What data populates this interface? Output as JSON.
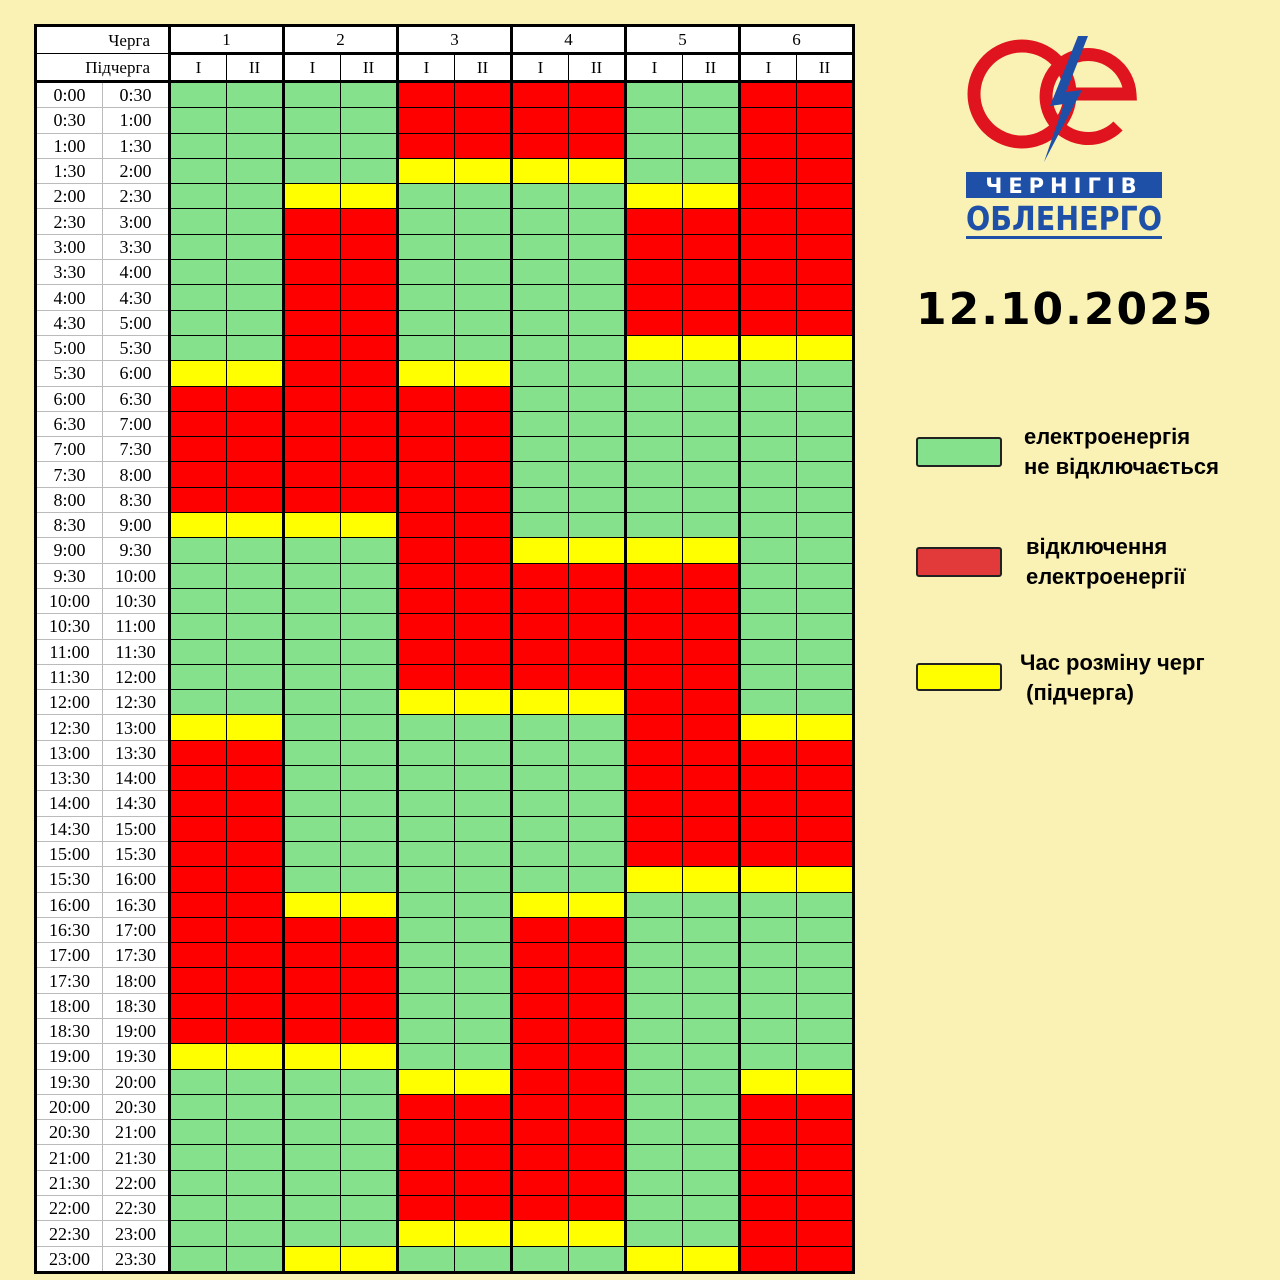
{
  "header": {
    "queue_label": "Черга",
    "subqueue_label": "Підчерга",
    "queues": [
      "1",
      "2",
      "3",
      "4",
      "5",
      "6"
    ],
    "subqueues": [
      "I",
      "II"
    ]
  },
  "date": "12.10.2025",
  "logo": {
    "line1": "ЧЕРНІГІВ",
    "line2": "ОБЛЕНЕРГО"
  },
  "colors": {
    "G": "#86e18c",
    "R": "#ff0000",
    "Y": "#ffff00"
  },
  "legend": [
    {
      "code": "G",
      "line1": "електроенергія",
      "line2": "не відключається"
    },
    {
      "code": "R",
      "line1": "відключення",
      "line2": "електроенергії"
    },
    {
      "code": "Y",
      "line1": "Час розміну черг",
      "line2": " (підчерга)"
    }
  ],
  "rows": [
    {
      "from": "0:00",
      "to": "0:30",
      "status": "GGGGRRRRGGRR"
    },
    {
      "from": "0:30",
      "to": "1:00",
      "status": "GGGGRRRRGGRR"
    },
    {
      "from": "1:00",
      "to": "1:30",
      "status": "GGGGRRRRGGRR"
    },
    {
      "from": "1:30",
      "to": "2:00",
      "status": "GGGGYYYYGGRR"
    },
    {
      "from": "2:00",
      "to": "2:30",
      "status": "GGYYGGGGYYRR"
    },
    {
      "from": "2:30",
      "to": "3:00",
      "status": "GGRRGGGGRRRR"
    },
    {
      "from": "3:00",
      "to": "3:30",
      "status": "GGRRGGGGRRRR"
    },
    {
      "from": "3:30",
      "to": "4:00",
      "status": "GGRRGGGGRRRR"
    },
    {
      "from": "4:00",
      "to": "4:30",
      "status": "GGRRGGGGRRRR"
    },
    {
      "from": "4:30",
      "to": "5:00",
      "status": "GGRRGGGGRRRR"
    },
    {
      "from": "5:00",
      "to": "5:30",
      "status": "GGRRGGGGYYYY"
    },
    {
      "from": "5:30",
      "to": "6:00",
      "status": "YYRRYYGGGGGG"
    },
    {
      "from": "6:00",
      "to": "6:30",
      "status": "RRRRRRGGGGGG"
    },
    {
      "from": "6:30",
      "to": "7:00",
      "status": "RRRRRRGGGGGG"
    },
    {
      "from": "7:00",
      "to": "7:30",
      "status": "RRRRRRGGGGGG"
    },
    {
      "from": "7:30",
      "to": "8:00",
      "status": "RRRRRRGGGGGG"
    },
    {
      "from": "8:00",
      "to": "8:30",
      "status": "RRRRRRGGGGGG"
    },
    {
      "from": "8:30",
      "to": "9:00",
      "status": "YYYYRRGGGGGG"
    },
    {
      "from": "9:00",
      "to": "9:30",
      "status": "GGGGRRYYYYGG"
    },
    {
      "from": "9:30",
      "to": "10:00",
      "status": "GGGGRRRRRRGG"
    },
    {
      "from": "10:00",
      "to": "10:30",
      "status": "GGGGRRRRRRGG"
    },
    {
      "from": "10:30",
      "to": "11:00",
      "status": "GGGGRRRRRRGG"
    },
    {
      "from": "11:00",
      "to": "11:30",
      "status": "GGGGRRRRRRGG"
    },
    {
      "from": "11:30",
      "to": "12:00",
      "status": "GGGGRRRRRRGG"
    },
    {
      "from": "12:00",
      "to": "12:30",
      "status": "GGGGYYYYRRGG"
    },
    {
      "from": "12:30",
      "to": "13:00",
      "status": "YYGGGGGGRRYY"
    },
    {
      "from": "13:00",
      "to": "13:30",
      "status": "RRGGGGGGRRRR"
    },
    {
      "from": "13:30",
      "to": "14:00",
      "status": "RRGGGGGGRRRR"
    },
    {
      "from": "14:00",
      "to": "14:30",
      "status": "RRGGGGGGRRRR"
    },
    {
      "from": "14:30",
      "to": "15:00",
      "status": "RRGGGGGGRRRR"
    },
    {
      "from": "15:00",
      "to": "15:30",
      "status": "RRGGGGGGRRRR"
    },
    {
      "from": "15:30",
      "to": "16:00",
      "status": "RRGGGGGGYYYY"
    },
    {
      "from": "16:00",
      "to": "16:30",
      "status": "RRYYGGYYGGGG"
    },
    {
      "from": "16:30",
      "to": "17:00",
      "status": "RRRRGGRRGGGG"
    },
    {
      "from": "17:00",
      "to": "17:30",
      "status": "RRRRGGRRGGGG"
    },
    {
      "from": "17:30",
      "to": "18:00",
      "status": "RRRRGGRRGGGG"
    },
    {
      "from": "18:00",
      "to": "18:30",
      "status": "RRRRGGRRGGGG"
    },
    {
      "from": "18:30",
      "to": "19:00",
      "status": "RRRRGGRRGGGG"
    },
    {
      "from": "19:00",
      "to": "19:30",
      "status": "YYYYGGRRGGGG"
    },
    {
      "from": "19:30",
      "to": "20:00",
      "status": "GGGGYYRRGGYY"
    },
    {
      "from": "20:00",
      "to": "20:30",
      "status": "GGGGRRRRGGRR"
    },
    {
      "from": "20:30",
      "to": "21:00",
      "status": "GGGGRRRRGGRR"
    },
    {
      "from": "21:00",
      "to": "21:30",
      "status": "GGGGRRRRGGRR"
    },
    {
      "from": "21:30",
      "to": "22:00",
      "status": "GGGGRRRRGGRR"
    },
    {
      "from": "22:00",
      "to": "22:30",
      "status": "GGGGRRRRGGRR"
    },
    {
      "from": "22:30",
      "to": "23:00",
      "status": "GGGGYYYYGGRR"
    },
    {
      "from": "23:00",
      "to": "23:30",
      "status": "GGYYGGGGYYRR"
    }
  ]
}
